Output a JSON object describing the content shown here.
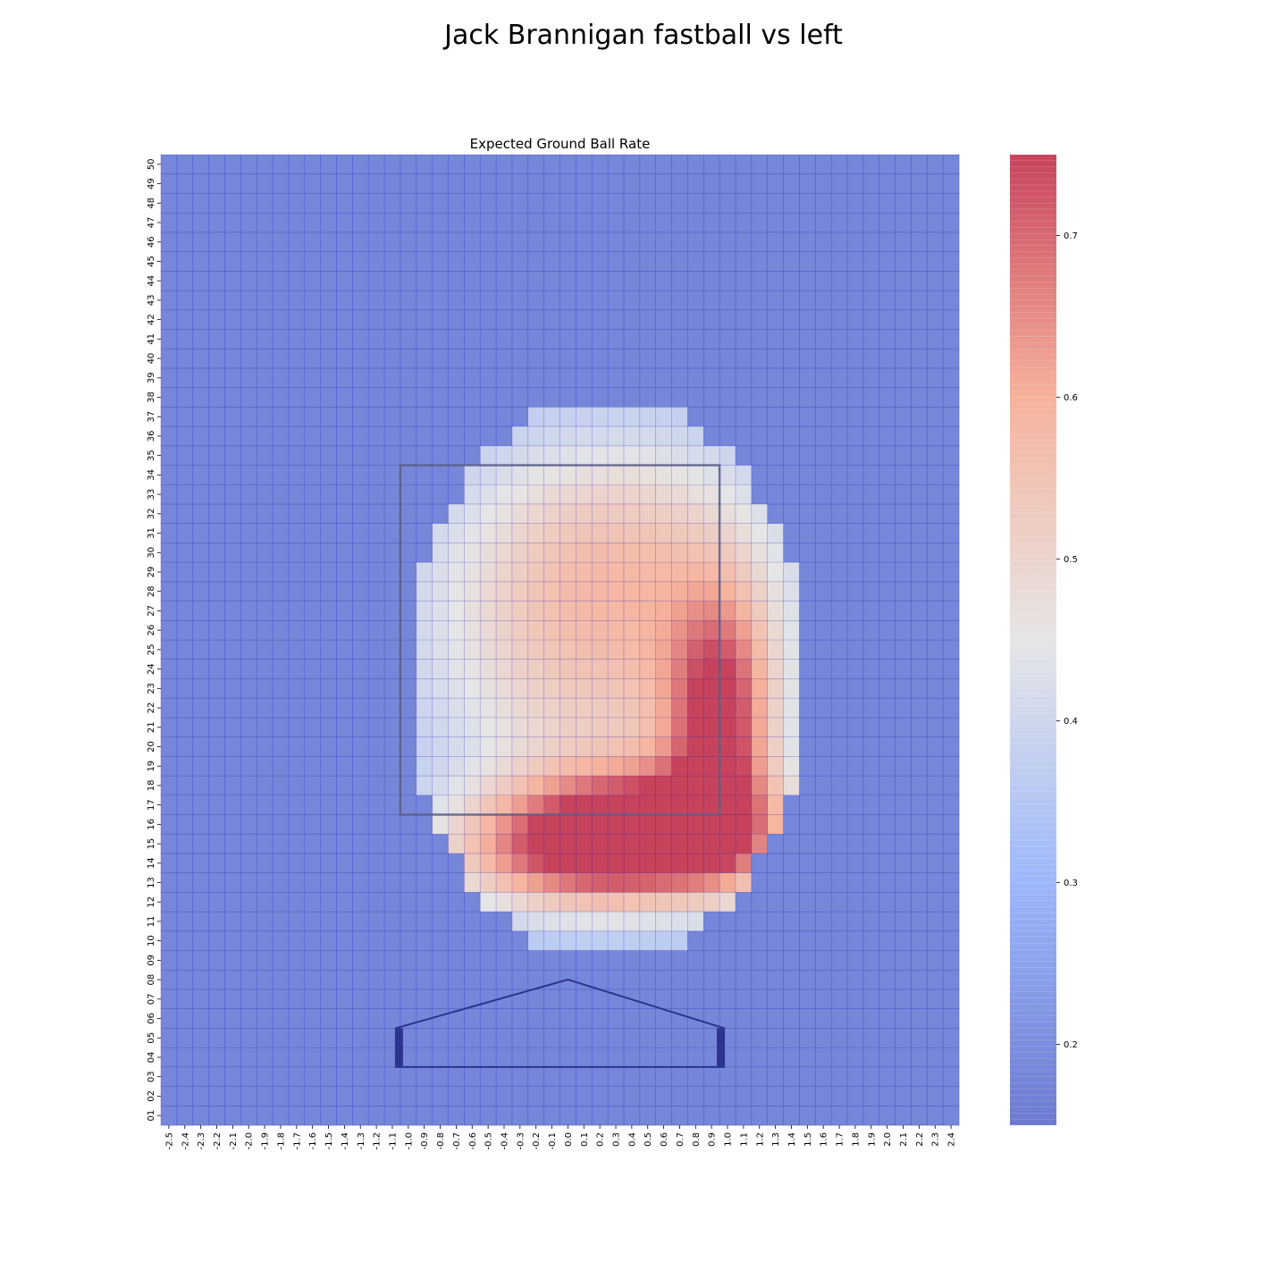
{
  "figure_title": "Jack Brannigan fastball vs left",
  "chart_data": {
    "type": "heatmap",
    "title": "Expected Ground Ball Rate",
    "xlabel": "",
    "ylabel": "",
    "x_ticks": [
      "-2.5",
      "-2.4",
      "-2.3",
      "-2.2",
      "-2.1",
      "-2.0",
      "-1.9",
      "-1.8",
      "-1.7",
      "-1.6",
      "-1.5",
      "-1.4",
      "-1.3",
      "-1.2",
      "-1.1",
      "-1.0",
      "-0.9",
      "-0.8",
      "-0.7",
      "-0.6",
      "-0.5",
      "-0.4",
      "-0.3",
      "-0.2",
      "-0.1",
      "0.0",
      "0.1",
      "0.2",
      "0.3",
      "0.4",
      "0.5",
      "0.6",
      "0.7",
      "0.8",
      "0.9",
      "1.0",
      "1.1",
      "1.2",
      "1.3",
      "1.4",
      "1.5",
      "1.6",
      "1.7",
      "1.8",
      "1.9",
      "2.0",
      "2.1",
      "2.2",
      "2.3",
      "2.4"
    ],
    "y_ticks": [
      "50",
      "49",
      "48",
      "47",
      "46",
      "45",
      "44",
      "43",
      "42",
      "41",
      "40",
      "39",
      "38",
      "37",
      "36",
      "35",
      "34",
      "33",
      "32",
      "31",
      "30",
      "29",
      "28",
      "27",
      "26",
      "25",
      "24",
      "23",
      "22",
      "21",
      "20",
      "19",
      "18",
      "17",
      "16",
      "15",
      "14",
      "13",
      "12",
      "11",
      "10",
      "09",
      "08",
      "07",
      "06",
      "05",
      "04",
      "03",
      "02",
      "01"
    ],
    "value_range": [
      0.15,
      0.75
    ],
    "colorbar_ticks": [
      "0.2",
      "0.3",
      "0.4",
      "0.5",
      "0.6",
      "0.7"
    ],
    "colormap": "coolwarm",
    "grid": true,
    "strike_zone": {
      "x": [
        -1.0,
        1.0
      ],
      "y": [
        1.7,
        3.4
      ]
    },
    "home_plate": {
      "x": [
        -1.0,
        1.0
      ],
      "bottom": 0.35,
      "shoulder": 0.55,
      "apex": 0.75
    },
    "blobs": [
      {
        "cx": 0.55,
        "cy": 1.55,
        "sx": 0.55,
        "sy": 0.22,
        "amp": 0.45
      },
      {
        "cx": 0.95,
        "cy": 2.1,
        "sx": 0.22,
        "sy": 0.45,
        "amp": 0.35
      },
      {
        "cx": -0.1,
        "cy": 1.45,
        "sx": 0.55,
        "sy": 0.22,
        "amp": 0.22
      },
      {
        "cx": 0.25,
        "cy": 2.45,
        "sx": 0.9,
        "sy": 0.75,
        "amp": 0.22
      },
      {
        "cx": 0.3,
        "cy": 3.05,
        "sx": 0.75,
        "sy": 0.45,
        "amp": 0.1
      }
    ],
    "baseline": 0.18,
    "boundary": {
      "cx": 0.25,
      "cy": 2.35,
      "rx": 1.25,
      "ry": 1.45,
      "pad": 0.12
    }
  }
}
